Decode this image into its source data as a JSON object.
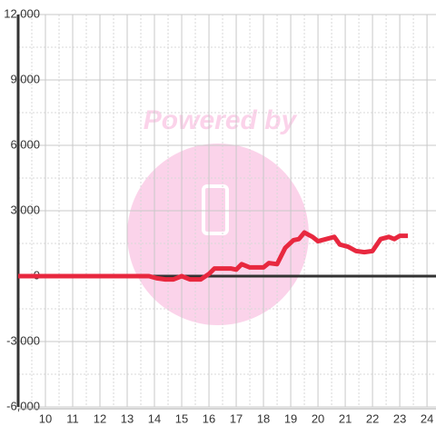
{
  "chart_data": {
    "type": "line",
    "watermark": "Powered by",
    "x": [
      9,
      13.8,
      14.1,
      14.4,
      14.7,
      15,
      15.3,
      15.7,
      16,
      16.2,
      16.5,
      16.8,
      17,
      17.2,
      17.5,
      17.8,
      18,
      18.2,
      18.5,
      18.8,
      19.1,
      19.3,
      19.5,
      19.8,
      20,
      20.3,
      20.6,
      20.8,
      21.1,
      21.4,
      21.7,
      22,
      22.3,
      22.6,
      22.8,
      23,
      23.3
    ],
    "series": [
      {
        "color": "#e8283f",
        "values": [
          0,
          0,
          -100,
          -150,
          -150,
          0,
          -150,
          -150,
          100,
          350,
          350,
          350,
          300,
          550,
          400,
          400,
          400,
          600,
          550,
          1300,
          1650,
          1700,
          2000,
          1800,
          1600,
          1700,
          1800,
          1450,
          1350,
          1150,
          1100,
          1150,
          1700,
          1800,
          1700,
          1850,
          1850
        ]
      }
    ],
    "xlim": [
      9,
      24.33
    ],
    "xticks": [
      10,
      11,
      12,
      13,
      14,
      15,
      16,
      17,
      18,
      19,
      20,
      21,
      22,
      23,
      24
    ],
    "ylim": [
      -6000,
      12000
    ],
    "yticks": [
      {
        "value": -6000,
        "label": "-6,000"
      },
      {
        "value": -3000,
        "label": "-3,000"
      },
      0,
      {
        "value": 3000,
        "label": "3,000"
      },
      {
        "value": 6000,
        "label": "6,000"
      },
      {
        "value": 9000,
        "label": "9,000"
      },
      {
        "value": 12000,
        "label": "12,000"
      }
    ],
    "grid": true
  }
}
